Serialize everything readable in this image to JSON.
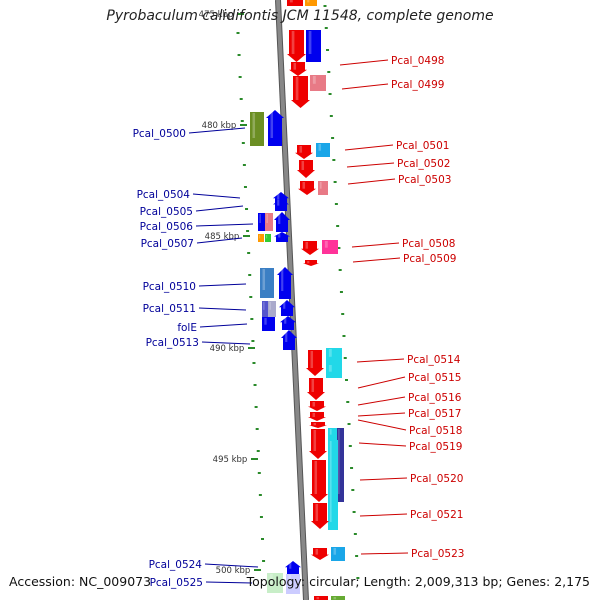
{
  "title": "Pyrobaculum calidifontis JCM 11548, complete genome",
  "footer": {
    "accession": "Accession: NC_009073",
    "topology": "Topology: circular; Length: 2,009,313 bp; Genes: 2,175"
  },
  "colors": {
    "forward_label": "#cc0000",
    "reverse_label": "#000099",
    "ruler_tick": "#2a8a2a",
    "backbone": "#888888"
  },
  "ruler_ticks": [
    "475 kbp",
    "480 kbp",
    "485 kbp",
    "490 kbp",
    "495 kbp",
    "500 kbp"
  ],
  "forward_labels": [
    "Pcal_0498",
    "Pcal_0499",
    "Pcal_0501",
    "Pcal_0502",
    "Pcal_0503",
    "Pcal_0508",
    "Pcal_0509",
    "Pcal_0514",
    "Pcal_0515",
    "Pcal_0516",
    "Pcal_0517",
    "Pcal_0518",
    "Pcal_0519",
    "Pcal_0520",
    "Pcal_0521",
    "Pcal_0523"
  ],
  "reverse_labels": [
    "Pcal_0500",
    "Pcal_0504",
    "Pcal_0505",
    "Pcal_0506",
    "Pcal_0507",
    "Pcal_0510",
    "Pcal_0511",
    "folE",
    "Pcal_0513",
    "Pcal_0524",
    "Pcal_0525"
  ]
}
